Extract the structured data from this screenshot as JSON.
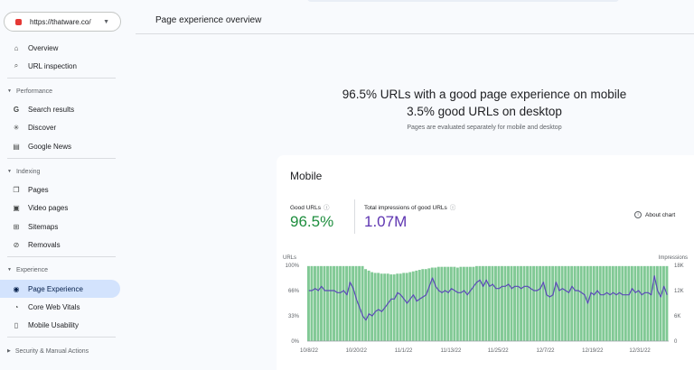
{
  "property": {
    "url": "https://thatware.co/"
  },
  "nav": {
    "overview": "Overview",
    "url_inspection": "URL inspection",
    "performance": "Performance",
    "search_results": "Search results",
    "discover": "Discover",
    "google_news": "Google News",
    "indexing": "Indexing",
    "pages": "Pages",
    "video_pages": "Video pages",
    "sitemaps": "Sitemaps",
    "removals": "Removals",
    "experience": "Experience",
    "page_experience": "Page Experience",
    "core_web_vitals": "Core Web Vitals",
    "mobile_usability": "Mobile Usability",
    "security": "Security & Manual Actions"
  },
  "header": {
    "title": "Page experience overview"
  },
  "summary": {
    "line1": "96.5% URLs with a good page experience on mobile",
    "line2": "3.5% good URLs on desktop",
    "note": "Pages are evaluated separately for mobile and desktop"
  },
  "card": {
    "title": "Mobile",
    "good_urls_label": "Good URLs",
    "good_urls_value": "96.5%",
    "impressions_label": "Total impressions of good URLs",
    "impressions_value": "1.07M",
    "about_chart": "About chart"
  },
  "colors": {
    "bar": "#81c995",
    "line": "#5b4ab8",
    "good": "#1e8e3e",
    "impressions": "#5e35b1",
    "accent": "#d3e3fd"
  },
  "chart_data": {
    "type": "bar",
    "left_axis_label": "URLs",
    "right_axis_label": "Impressions",
    "left_ticks": [
      "100%",
      "66%",
      "33%",
      "0%"
    ],
    "right_ticks": [
      "18K",
      "12K",
      "6K",
      "0"
    ],
    "x_ticks": [
      "10/8/22",
      "10/20/22",
      "11/1/22",
      "11/13/22",
      "11/25/22",
      "12/7/22",
      "12/19/22",
      "12/31/22"
    ],
    "ylim_left": [
      0,
      100
    ],
    "ylim_right": [
      0,
      18000
    ],
    "series": [
      {
        "name": "Good URLs",
        "values": [
          99,
          99,
          99,
          99,
          99,
          99,
          99,
          99,
          99,
          99,
          99,
          99,
          99,
          99,
          99,
          99,
          99,
          99,
          95,
          93,
          91,
          90,
          90,
          89,
          89,
          89,
          88,
          88,
          89,
          89,
          90,
          90,
          91,
          92,
          93,
          94,
          95,
          95,
          96,
          97,
          97,
          98,
          98,
          98,
          98,
          98,
          98,
          97,
          98,
          98,
          98,
          98,
          98,
          99,
          99,
          99,
          99,
          99,
          99,
          99,
          99,
          99,
          99,
          99,
          99,
          99,
          99,
          99,
          99,
          99,
          99,
          99,
          99,
          99,
          99,
          99,
          99,
          99,
          99,
          99,
          99,
          99,
          99,
          99,
          99,
          99,
          99,
          99,
          99,
          99,
          99,
          99,
          99,
          99,
          99,
          99,
          99,
          99,
          99,
          99,
          99,
          99,
          99,
          99,
          99,
          99,
          99,
          99,
          99,
          99,
          99,
          99,
          99,
          99
        ]
      },
      {
        "name": "Impressions",
        "values": [
          12000,
          12000,
          12500,
          12000,
          13000,
          12000,
          12000,
          12000,
          12000,
          11500,
          11500,
          12000,
          11000,
          14000,
          12500,
          10000,
          8000,
          6000,
          5000,
          6500,
          6000,
          7000,
          7500,
          7000,
          8000,
          9000,
          10000,
          10000,
          11500,
          11000,
          10000,
          9000,
          10000,
          11000,
          9500,
          10000,
          10500,
          11000,
          13000,
          15000,
          13000,
          12000,
          11500,
          12000,
          11500,
          12500,
          12000,
          11500,
          11500,
          12000,
          11000,
          12000,
          13000,
          14000,
          14500,
          13000,
          14500,
          13000,
          13500,
          12500,
          12500,
          13000,
          13000,
          13500,
          12500,
          13000,
          13000,
          12500,
          13000,
          13000,
          12500,
          12000,
          12000,
          12500,
          14000,
          11000,
          10500,
          11000,
          14000,
          12000,
          12500,
          12000,
          11500,
          13000,
          12000,
          12000,
          11500,
          11000,
          9000,
          11500,
          11000,
          12000,
          11000,
          11000,
          11500,
          11000,
          11500,
          11000,
          11500,
          11000,
          11000,
          11000,
          12500,
          11500,
          12000,
          11000,
          11500,
          11500,
          11000,
          15500,
          12000,
          10500,
          13000,
          11000
        ]
      }
    ]
  }
}
